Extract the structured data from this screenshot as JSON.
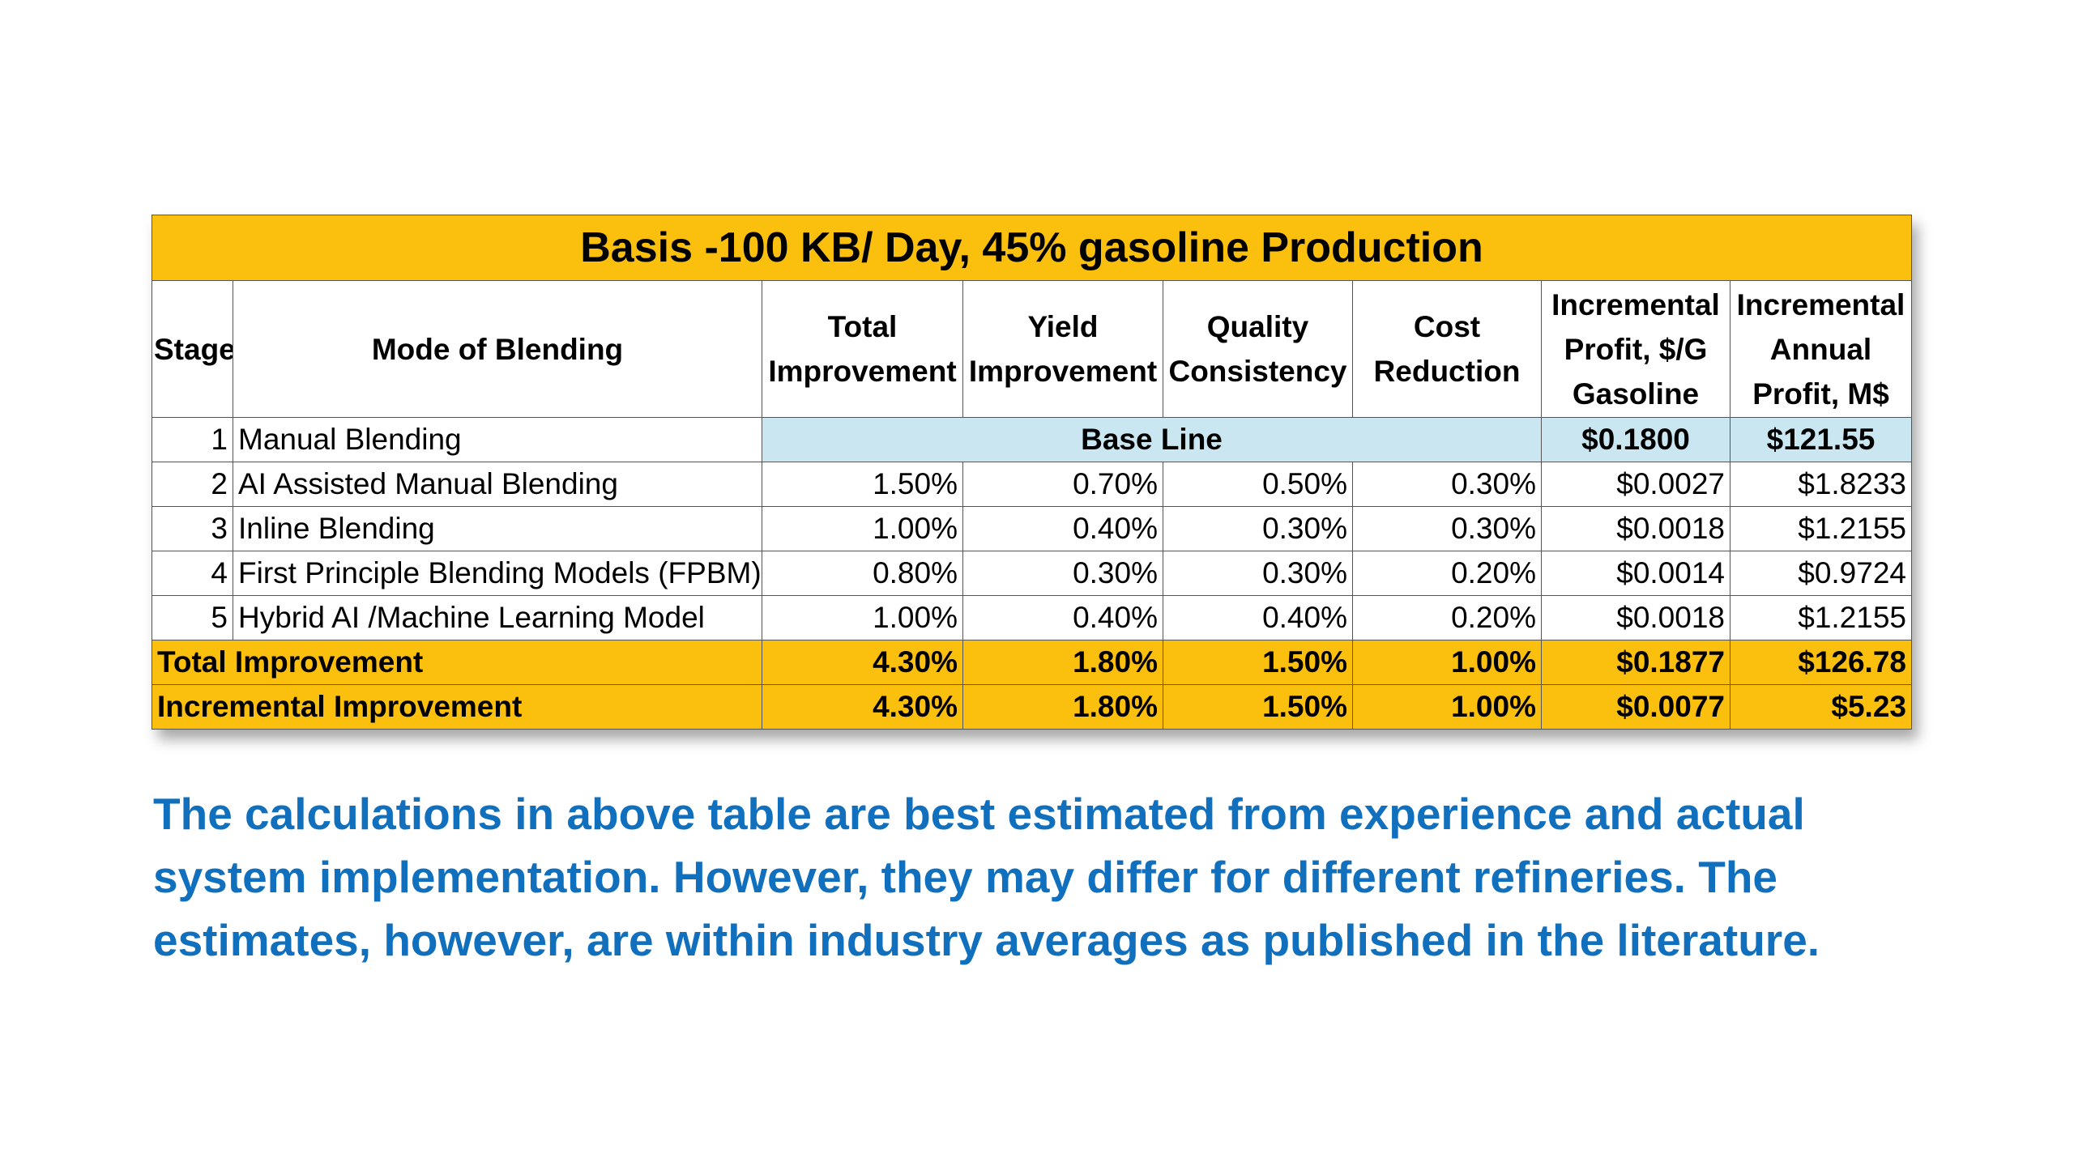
{
  "table": {
    "title": "Basis -100 KB/ Day, 45% gasoline Production",
    "headers": {
      "stage": "Stage",
      "mode": "Mode of Blending",
      "total": [
        "Total",
        "Improvement"
      ],
      "yield": [
        "Yield",
        "Improvement"
      ],
      "quality": [
        "Quality",
        "Consistency"
      ],
      "cost": [
        "Cost",
        "Reduction"
      ],
      "profit_g": [
        "Incremental",
        "Profit, $/G",
        "Gasoline"
      ],
      "profit_annual": [
        "Incremental",
        "Annual",
        "Profit, M$"
      ]
    },
    "baseline": {
      "stage": "1",
      "mode": "Manual Blending",
      "label": "Base Line",
      "profit_g": "$0.1800",
      "profit_annual": "$121.55"
    },
    "rows": [
      {
        "stage": "2",
        "mode": "AI Assisted Manual Blending",
        "total": "1.50%",
        "yield": "0.70%",
        "quality": "0.50%",
        "cost": "0.30%",
        "profit_g": "$0.0027",
        "profit_annual": "$1.8233"
      },
      {
        "stage": "3",
        "mode": "Inline Blending",
        "total": "1.00%",
        "yield": "0.40%",
        "quality": "0.30%",
        "cost": "0.30%",
        "profit_g": "$0.0018",
        "profit_annual": "$1.2155"
      },
      {
        "stage": "4",
        "mode": "First Principle Blending Models (FPBM)",
        "total": "0.80%",
        "yield": "0.30%",
        "quality": "0.30%",
        "cost": "0.20%",
        "profit_g": "$0.0014",
        "profit_annual": "$0.9724"
      },
      {
        "stage": "5",
        "mode": "Hybrid AI /Machine Learning Model",
        "total": "1.00%",
        "yield": "0.40%",
        "quality": "0.40%",
        "cost": "0.20%",
        "profit_g": "$0.0018",
        "profit_annual": "$1.2155"
      }
    ],
    "summary": [
      {
        "label": "Total Improvement",
        "total": "4.30%",
        "yield": "1.80%",
        "quality": "1.50%",
        "cost": "1.00%",
        "profit_g": "$0.1877",
        "profit_annual": "$126.78"
      },
      {
        "label": "Incremental Improvement",
        "total": "4.30%",
        "yield": "1.80%",
        "quality": "1.50%",
        "cost": "1.00%",
        "profit_g": "$0.0077",
        "profit_annual": "$5.23"
      }
    ]
  },
  "note": [
    "The calculations in above table are best estimated from experience and actual",
    "system implementation. However, they may differ for different refineries. The",
    "estimates, however, are within industry averages as published in the literature."
  ],
  "colors": {
    "title_fill": "#fbbf0d",
    "baseline_fill": "#c9e6f1",
    "note_text": "#1170bd"
  }
}
